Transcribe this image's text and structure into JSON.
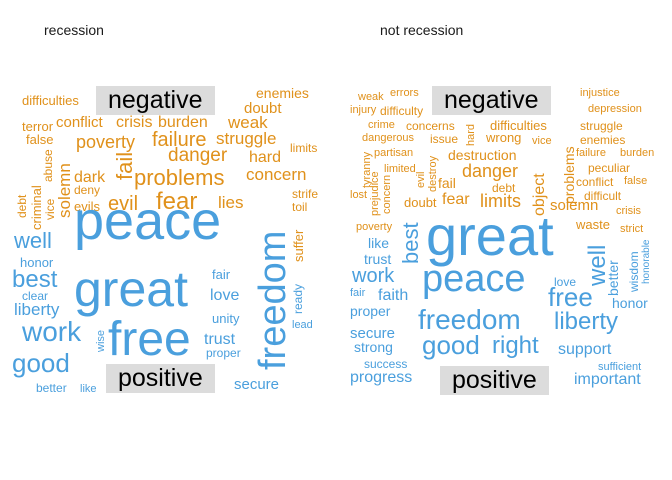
{
  "panels": [
    {
      "title": "recession",
      "negative_label": "negative",
      "positive_label": "positive",
      "colors": {
        "negative": "#E0911B",
        "positive": "#4A9FDD",
        "label_box": "#dcdcdc"
      },
      "words": {
        "peace": "peace",
        "great": "great",
        "free": "free",
        "freedom": "freedom",
        "work": "work",
        "good": "good",
        "best": "best",
        "well": "well",
        "liberty": "liberty",
        "honor": "honor",
        "clear": "clear",
        "love": "love",
        "unity": "unity",
        "trust": "trust",
        "proper": "proper",
        "fair": "fair",
        "secure": "secure",
        "ready": "ready",
        "lead": "lead",
        "wise": "wise",
        "better": "better",
        "like": "like",
        "difficulties": "difficulties",
        "enemies": "enemies",
        "doubt": "doubt",
        "terror": "terror",
        "conflict": "conflict",
        "crisis": "crisis",
        "burden": "burden",
        "weak": "weak",
        "false": "false",
        "poverty": "poverty",
        "failure": "failure",
        "struggle": "struggle",
        "limits": "limits",
        "fail": "fail",
        "danger": "danger",
        "hard": "hard",
        "abuse": "abuse",
        "solemn": "solemn",
        "dark": "dark",
        "problems": "problems",
        "concern": "concern",
        "deny": "deny",
        "evil": "evil",
        "fear": "fear",
        "lies": "lies",
        "vice": "vice",
        "criminal": "criminal",
        "debt": "debt",
        "evils": "evils",
        "strife": "strife",
        "toil": "toil",
        "suffer": "suffer"
      }
    },
    {
      "title": "not recession",
      "negative_label": "negative",
      "positive_label": "positive",
      "colors": {
        "negative": "#E0911B",
        "positive": "#4A9FDD",
        "label_box": "#dcdcdc"
      },
      "words": {
        "great": "great",
        "peace": "peace",
        "freedom": "freedom",
        "liberty": "liberty",
        "good": "good",
        "right": "right",
        "free": "free",
        "work": "work",
        "well": "well",
        "best": "best",
        "support": "support",
        "faith": "faith",
        "proper": "proper",
        "secure": "secure",
        "strong": "strong",
        "success": "success",
        "progress": "progress",
        "important": "important",
        "sufficient": "sufficient",
        "honor": "honor",
        "wisdom": "wisdom",
        "better": "better",
        "honorable": "honorable",
        "love": "love",
        "like": "like",
        "trust": "trust",
        "fair": "fair",
        "weak": "weak",
        "errors": "errors",
        "injustice": "injustice",
        "injury": "injury",
        "difficulty": "difficulty",
        "depression": "depression",
        "crime": "crime",
        "concerns": "concerns",
        "difficulties": "difficulties",
        "struggle": "struggle",
        "dangerous": "dangerous",
        "issue": "issue",
        "hard": "hard",
        "wrong": "wrong",
        "vice": "vice",
        "enemies": "enemies",
        "partisan": "partisan",
        "destruction": "destruction",
        "failure": "failure",
        "burden": "burden",
        "tyranny": "tyranny",
        "limited": "limited",
        "evil": "evil",
        "destroy": "destroy",
        "danger": "danger",
        "problems": "problems",
        "peculiar": "peculiar",
        "conflict": "conflict",
        "false": "false",
        "lost": "lost",
        "prejudice": "prejudice",
        "concern": "concern",
        "fail": "fail",
        "debt": "debt",
        "object": "object",
        "difficult": "difficult",
        "doubt": "doubt",
        "fear": "fear",
        "limits": "limits",
        "solemn": "solemn",
        "crisis": "crisis",
        "poverty": "poverty",
        "waste": "waste",
        "strict": "strict"
      }
    }
  ]
}
